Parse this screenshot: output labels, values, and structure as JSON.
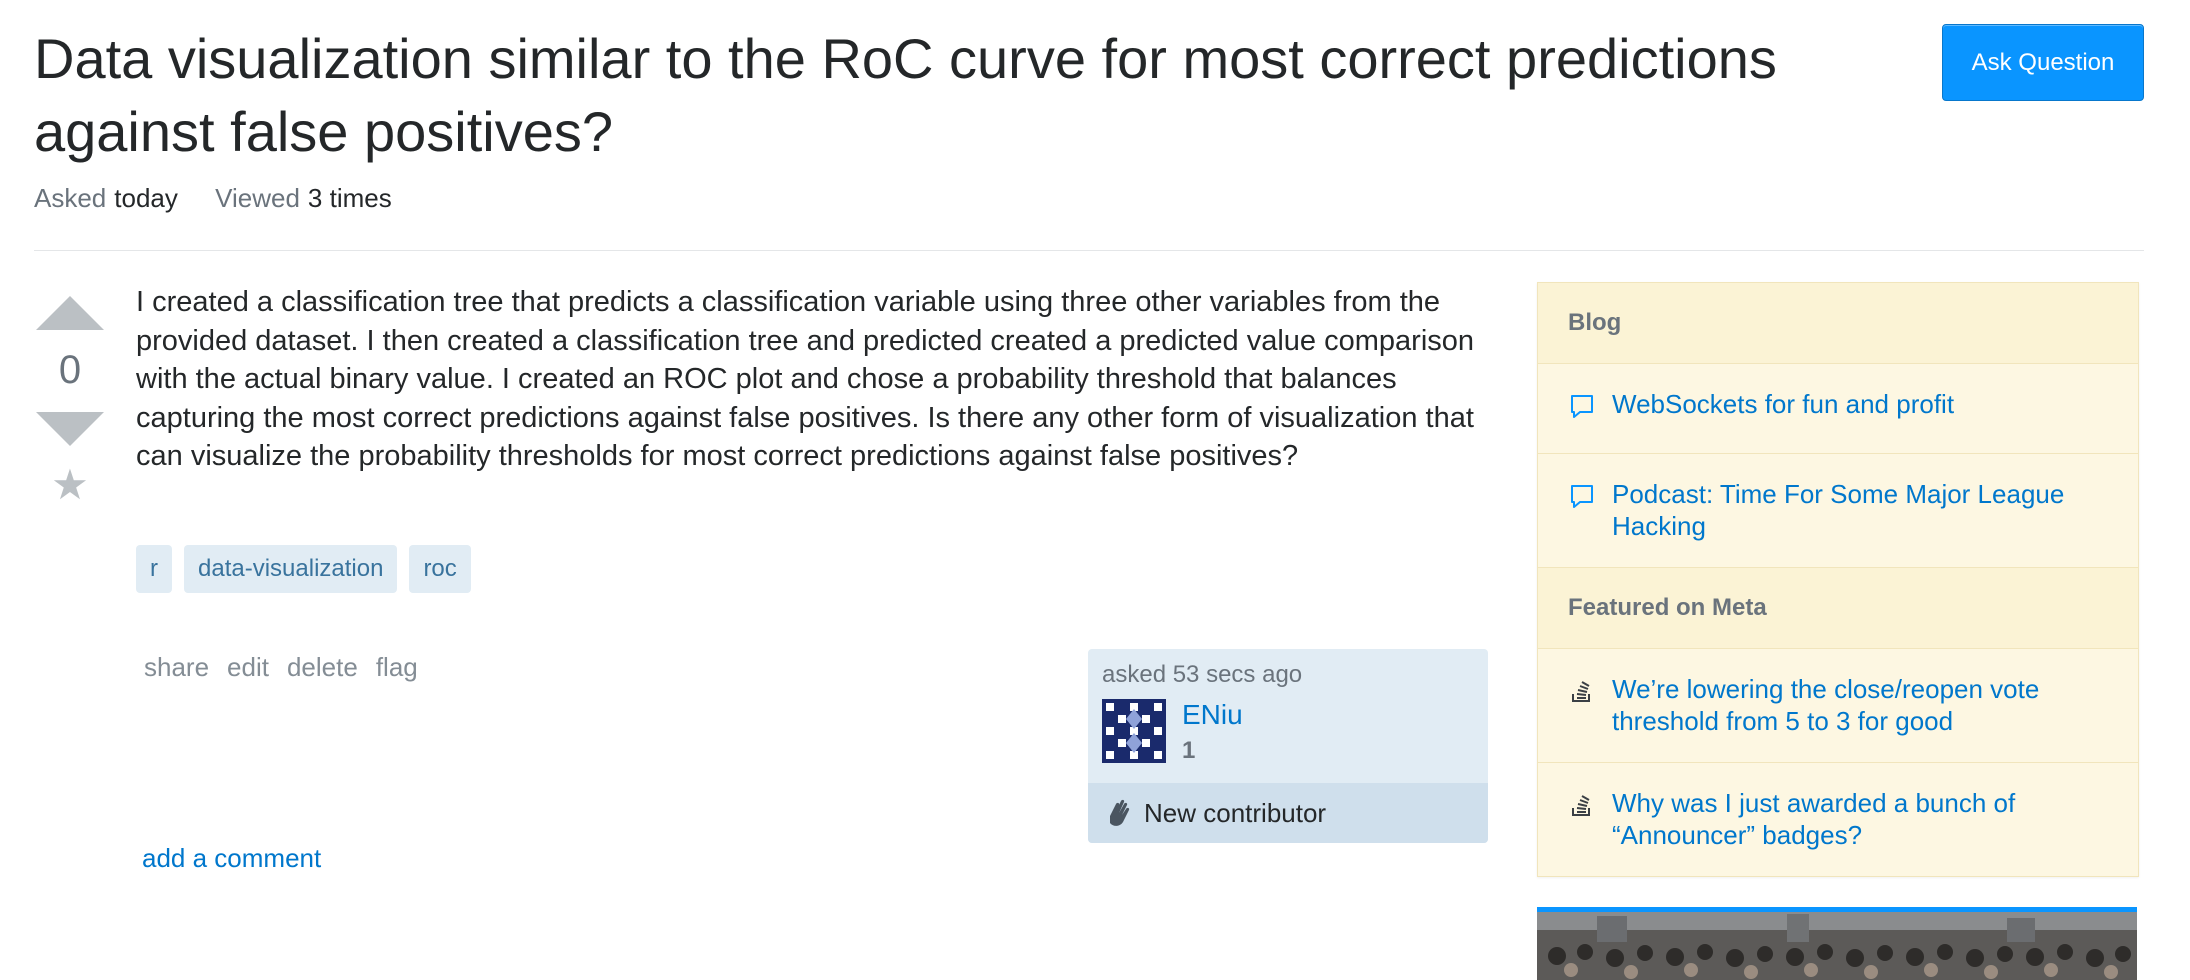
{
  "question": {
    "title": "Data visualization similar to the RoC curve for most correct predictions against false positives?",
    "ask_button": "Ask Question",
    "asked_label": "Asked",
    "asked_value": "today",
    "viewed_label": "Viewed",
    "viewed_value": "3 times",
    "vote_count": "0",
    "body": "I created a classification tree that predicts a classification variable using three other variables from the provided dataset. I then created a classification tree and predicted created a predicted value comparison with the actual binary value. I created an ROC plot and chose a probability threshold that balances capturing the most correct predictions against false positives. Is there any other form of visualization that can visualize the probability thresholds for most correct predictions against false positives?",
    "tags": [
      "r",
      "data-visualization",
      "roc"
    ],
    "menu": {
      "share": "share",
      "edit": "edit",
      "delete": "delete",
      "flag": "flag"
    },
    "owner": {
      "asked_time": "asked 53 secs ago",
      "name": "ENiu",
      "reputation": "1",
      "badge": "New contributor"
    },
    "add_comment": "add a comment"
  },
  "sidebar": {
    "blog_heading": "Blog",
    "blog_items": [
      "WebSockets for fun and profit",
      "Podcast: Time For Some Major League Hacking"
    ],
    "meta_heading": "Featured on Meta",
    "meta_items": [
      "We’re lowering the close/reopen vote threshold from 5 to 3 for good",
      "Why was I just awarded a bunch of “Announcer” badges?"
    ]
  },
  "colors": {
    "accent": "#0a95ff",
    "link": "#0077cc",
    "tag_bg": "#e1ecf4",
    "sidebar_bg": "#fdf7e2"
  }
}
